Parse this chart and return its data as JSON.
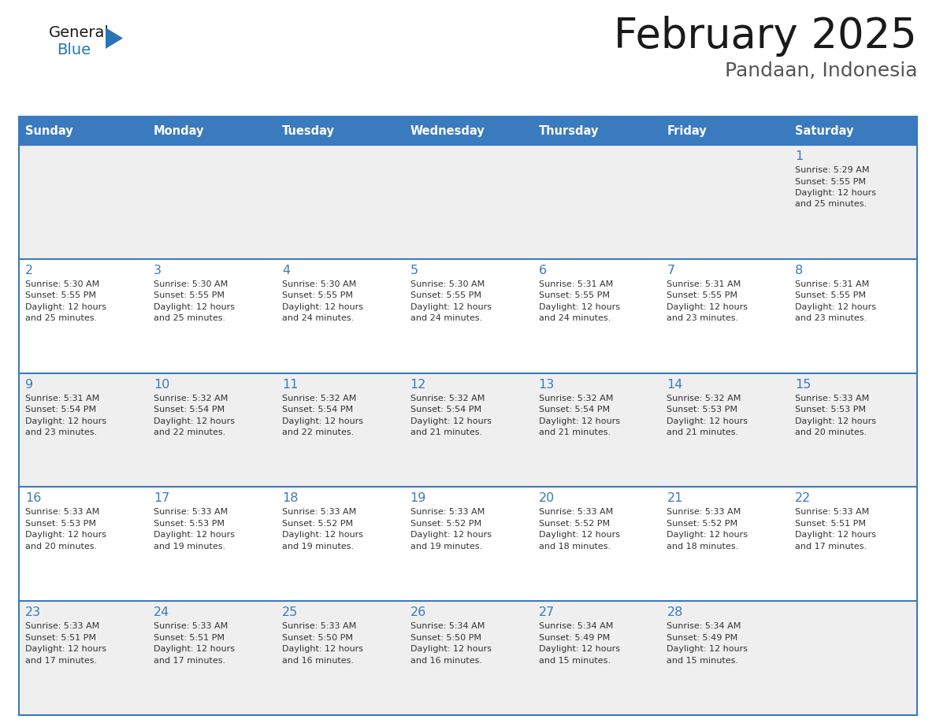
{
  "title": "February 2025",
  "subtitle": "Pandaan, Indonesia",
  "header_color": "#3a7abf",
  "header_text_color": "#ffffff",
  "cell_bg_even": "#efefef",
  "cell_bg_odd": "#ffffff",
  "day_headers": [
    "Sunday",
    "Monday",
    "Tuesday",
    "Wednesday",
    "Thursday",
    "Friday",
    "Saturday"
  ],
  "title_color": "#1a1a1a",
  "subtitle_color": "#555555",
  "day_number_color": "#3a7abf",
  "info_color": "#333333",
  "border_color": "#3a7abf",
  "calendar_data": [
    [
      null,
      null,
      null,
      null,
      null,
      null,
      {
        "day": 1,
        "sunrise": "5:29 AM",
        "sunset": "5:55 PM",
        "daylight": "12 hours and 25 minutes."
      }
    ],
    [
      {
        "day": 2,
        "sunrise": "5:30 AM",
        "sunset": "5:55 PM",
        "daylight": "12 hours and 25 minutes."
      },
      {
        "day": 3,
        "sunrise": "5:30 AM",
        "sunset": "5:55 PM",
        "daylight": "12 hours and 25 minutes."
      },
      {
        "day": 4,
        "sunrise": "5:30 AM",
        "sunset": "5:55 PM",
        "daylight": "12 hours and 24 minutes."
      },
      {
        "day": 5,
        "sunrise": "5:30 AM",
        "sunset": "5:55 PM",
        "daylight": "12 hours and 24 minutes."
      },
      {
        "day": 6,
        "sunrise": "5:31 AM",
        "sunset": "5:55 PM",
        "daylight": "12 hours and 24 minutes."
      },
      {
        "day": 7,
        "sunrise": "5:31 AM",
        "sunset": "5:55 PM",
        "daylight": "12 hours and 23 minutes."
      },
      {
        "day": 8,
        "sunrise": "5:31 AM",
        "sunset": "5:55 PM",
        "daylight": "12 hours and 23 minutes."
      }
    ],
    [
      {
        "day": 9,
        "sunrise": "5:31 AM",
        "sunset": "5:54 PM",
        "daylight": "12 hours and 23 minutes."
      },
      {
        "day": 10,
        "sunrise": "5:32 AM",
        "sunset": "5:54 PM",
        "daylight": "12 hours and 22 minutes."
      },
      {
        "day": 11,
        "sunrise": "5:32 AM",
        "sunset": "5:54 PM",
        "daylight": "12 hours and 22 minutes."
      },
      {
        "day": 12,
        "sunrise": "5:32 AM",
        "sunset": "5:54 PM",
        "daylight": "12 hours and 21 minutes."
      },
      {
        "day": 13,
        "sunrise": "5:32 AM",
        "sunset": "5:54 PM",
        "daylight": "12 hours and 21 minutes."
      },
      {
        "day": 14,
        "sunrise": "5:32 AM",
        "sunset": "5:53 PM",
        "daylight": "12 hours and 21 minutes."
      },
      {
        "day": 15,
        "sunrise": "5:33 AM",
        "sunset": "5:53 PM",
        "daylight": "12 hours and 20 minutes."
      }
    ],
    [
      {
        "day": 16,
        "sunrise": "5:33 AM",
        "sunset": "5:53 PM",
        "daylight": "12 hours and 20 minutes."
      },
      {
        "day": 17,
        "sunrise": "5:33 AM",
        "sunset": "5:53 PM",
        "daylight": "12 hours and 19 minutes."
      },
      {
        "day": 18,
        "sunrise": "5:33 AM",
        "sunset": "5:52 PM",
        "daylight": "12 hours and 19 minutes."
      },
      {
        "day": 19,
        "sunrise": "5:33 AM",
        "sunset": "5:52 PM",
        "daylight": "12 hours and 19 minutes."
      },
      {
        "day": 20,
        "sunrise": "5:33 AM",
        "sunset": "5:52 PM",
        "daylight": "12 hours and 18 minutes."
      },
      {
        "day": 21,
        "sunrise": "5:33 AM",
        "sunset": "5:52 PM",
        "daylight": "12 hours and 18 minutes."
      },
      {
        "day": 22,
        "sunrise": "5:33 AM",
        "sunset": "5:51 PM",
        "daylight": "12 hours and 17 minutes."
      }
    ],
    [
      {
        "day": 23,
        "sunrise": "5:33 AM",
        "sunset": "5:51 PM",
        "daylight": "12 hours and 17 minutes."
      },
      {
        "day": 24,
        "sunrise": "5:33 AM",
        "sunset": "5:51 PM",
        "daylight": "12 hours and 17 minutes."
      },
      {
        "day": 25,
        "sunrise": "5:33 AM",
        "sunset": "5:50 PM",
        "daylight": "12 hours and 16 minutes."
      },
      {
        "day": 26,
        "sunrise": "5:34 AM",
        "sunset": "5:50 PM",
        "daylight": "12 hours and 16 minutes."
      },
      {
        "day": 27,
        "sunrise": "5:34 AM",
        "sunset": "5:49 PM",
        "daylight": "12 hours and 15 minutes."
      },
      {
        "day": 28,
        "sunrise": "5:34 AM",
        "sunset": "5:49 PM",
        "daylight": "12 hours and 15 minutes."
      },
      null
    ]
  ],
  "logo_general_color": "#1a1a1a",
  "logo_blue_color": "#2874b8"
}
